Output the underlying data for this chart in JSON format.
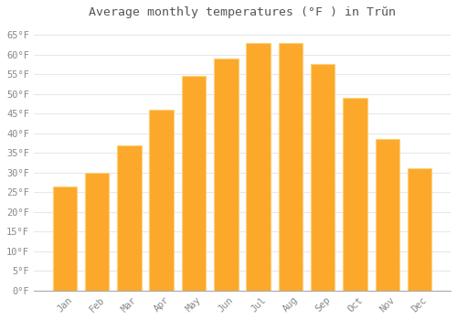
{
  "title": "Average monthly temperatures (°F ) in Trŭn",
  "months": [
    "Jan",
    "Feb",
    "Mar",
    "Apr",
    "May",
    "Jun",
    "Jul",
    "Aug",
    "Sep",
    "Oct",
    "Nov",
    "Dec"
  ],
  "values": [
    26.5,
    30,
    37,
    46,
    54.5,
    59,
    63,
    63,
    57.5,
    49,
    38.5,
    31
  ],
  "bar_color": "#FCA82A",
  "bar_edge_color": "#FDD07A",
  "background_color": "#FFFFFF",
  "plot_bg_color": "#FFFFFF",
  "grid_color": "#E8E8E8",
  "text_color": "#888888",
  "title_color": "#555555",
  "ylim": [
    0,
    68
  ],
  "yticks": [
    0,
    5,
    10,
    15,
    20,
    25,
    30,
    35,
    40,
    45,
    50,
    55,
    60,
    65
  ],
  "title_fontsize": 9.5,
  "tick_fontsize": 7.5,
  "font_family": "monospace",
  "bar_width": 0.75
}
